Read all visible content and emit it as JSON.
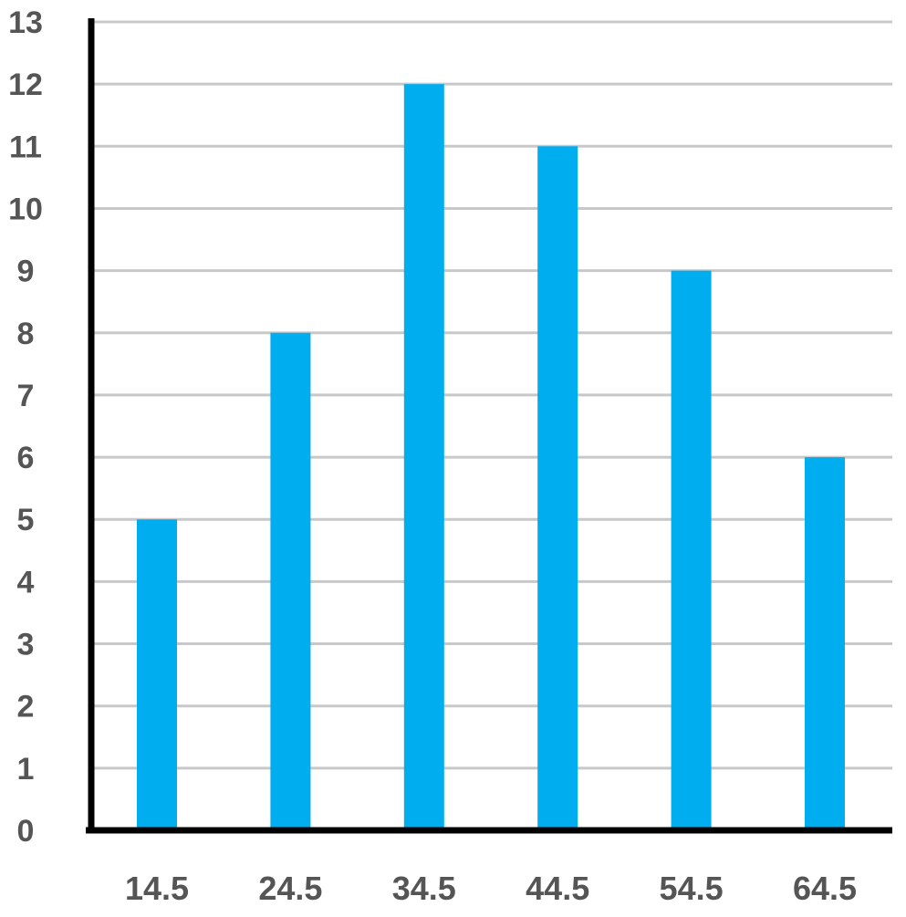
{
  "chart_data": {
    "type": "bar",
    "categories": [
      "14.5",
      "24.5",
      "34.5",
      "44.5",
      "54.5",
      "64.5"
    ],
    "values": [
      5,
      8,
      12,
      11,
      9,
      6
    ],
    "title": "",
    "xlabel": "",
    "ylabel": "",
    "ylim": [
      0,
      13
    ],
    "yticks": [
      "0",
      "1",
      "2",
      "3",
      "4",
      "5",
      "6",
      "7",
      "8",
      "9",
      "10",
      "11",
      "12",
      "13"
    ],
    "grid": true,
    "legend": "none",
    "colors": {
      "bar": "#00AEEF",
      "grid": "#C8C8C8",
      "axis": "#000000",
      "tick_text": "#555555"
    }
  }
}
